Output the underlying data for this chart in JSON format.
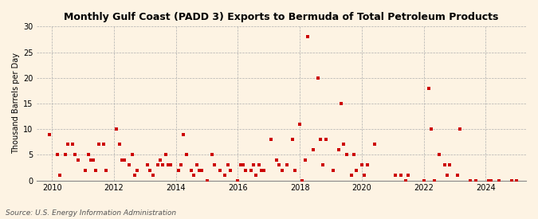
{
  "title": "Monthly Gulf Coast (PADD 3) Exports to Bermuda of Total Petroleum Products",
  "ylabel": "Thousand Barrels per Day",
  "source": "Source: U.S. Energy Information Administration",
  "background_color": "#fdf3e3",
  "marker_color": "#cc0000",
  "ylim": [
    0,
    30
  ],
  "yticks": [
    0,
    5,
    10,
    15,
    20,
    25,
    30
  ],
  "xlim": [
    2009.5,
    2025.3
  ],
  "xticks": [
    2010,
    2012,
    2014,
    2016,
    2018,
    2020,
    2022,
    2024
  ],
  "data_x": [
    2009.92,
    2010.17,
    2010.25,
    2010.42,
    2010.5,
    2010.67,
    2010.75,
    2010.83,
    2011.08,
    2011.17,
    2011.25,
    2011.33,
    2011.42,
    2011.5,
    2011.67,
    2011.75,
    2012.08,
    2012.17,
    2012.25,
    2012.33,
    2012.5,
    2012.58,
    2012.67,
    2012.75,
    2013.08,
    2013.17,
    2013.25,
    2013.42,
    2013.5,
    2013.58,
    2013.67,
    2013.75,
    2013.83,
    2014.08,
    2014.17,
    2014.25,
    2014.33,
    2014.5,
    2014.58,
    2014.67,
    2014.75,
    2014.83,
    2015.0,
    2015.17,
    2015.25,
    2015.42,
    2015.58,
    2015.67,
    2015.75,
    2016.0,
    2016.08,
    2016.17,
    2016.25,
    2016.42,
    2016.5,
    2016.58,
    2016.67,
    2016.75,
    2016.83,
    2017.08,
    2017.25,
    2017.33,
    2017.42,
    2017.58,
    2017.75,
    2017.83,
    2018.0,
    2018.08,
    2018.17,
    2018.25,
    2018.42,
    2018.58,
    2018.67,
    2018.75,
    2018.83,
    2019.08,
    2019.25,
    2019.33,
    2019.42,
    2019.5,
    2019.67,
    2019.75,
    2019.83,
    2020.0,
    2020.08,
    2020.17,
    2020.42,
    2021.08,
    2021.25,
    2021.42,
    2021.5,
    2022.0,
    2022.17,
    2022.25,
    2022.33,
    2022.5,
    2022.67,
    2022.75,
    2022.83,
    2023.08,
    2023.17,
    2023.5,
    2023.67,
    2024.08,
    2024.17,
    2024.42,
    2024.83,
    2025.0
  ],
  "data_y": [
    9,
    5,
    1,
    5,
    7,
    7,
    5,
    4,
    2,
    5,
    4,
    4,
    2,
    7,
    7,
    2,
    10,
    7,
    4,
    4,
    3,
    5,
    1,
    2,
    3,
    2,
    1,
    3,
    4,
    3,
    5,
    3,
    3,
    2,
    3,
    9,
    5,
    2,
    1,
    3,
    2,
    2,
    0,
    5,
    3,
    2,
    1,
    3,
    2,
    0,
    3,
    3,
    2,
    2,
    3,
    1,
    3,
    2,
    2,
    8,
    4,
    3,
    2,
    3,
    8,
    2,
    11,
    0,
    4,
    28,
    6,
    20,
    8,
    3,
    8,
    2,
    6,
    15,
    7,
    5,
    1,
    5,
    2,
    3,
    1,
    3,
    7,
    1,
    1,
    0,
    1,
    0,
    18,
    10,
    0,
    5,
    3,
    1,
    3,
    1,
    10,
    0,
    0,
    0,
    0,
    0,
    0,
    0
  ]
}
